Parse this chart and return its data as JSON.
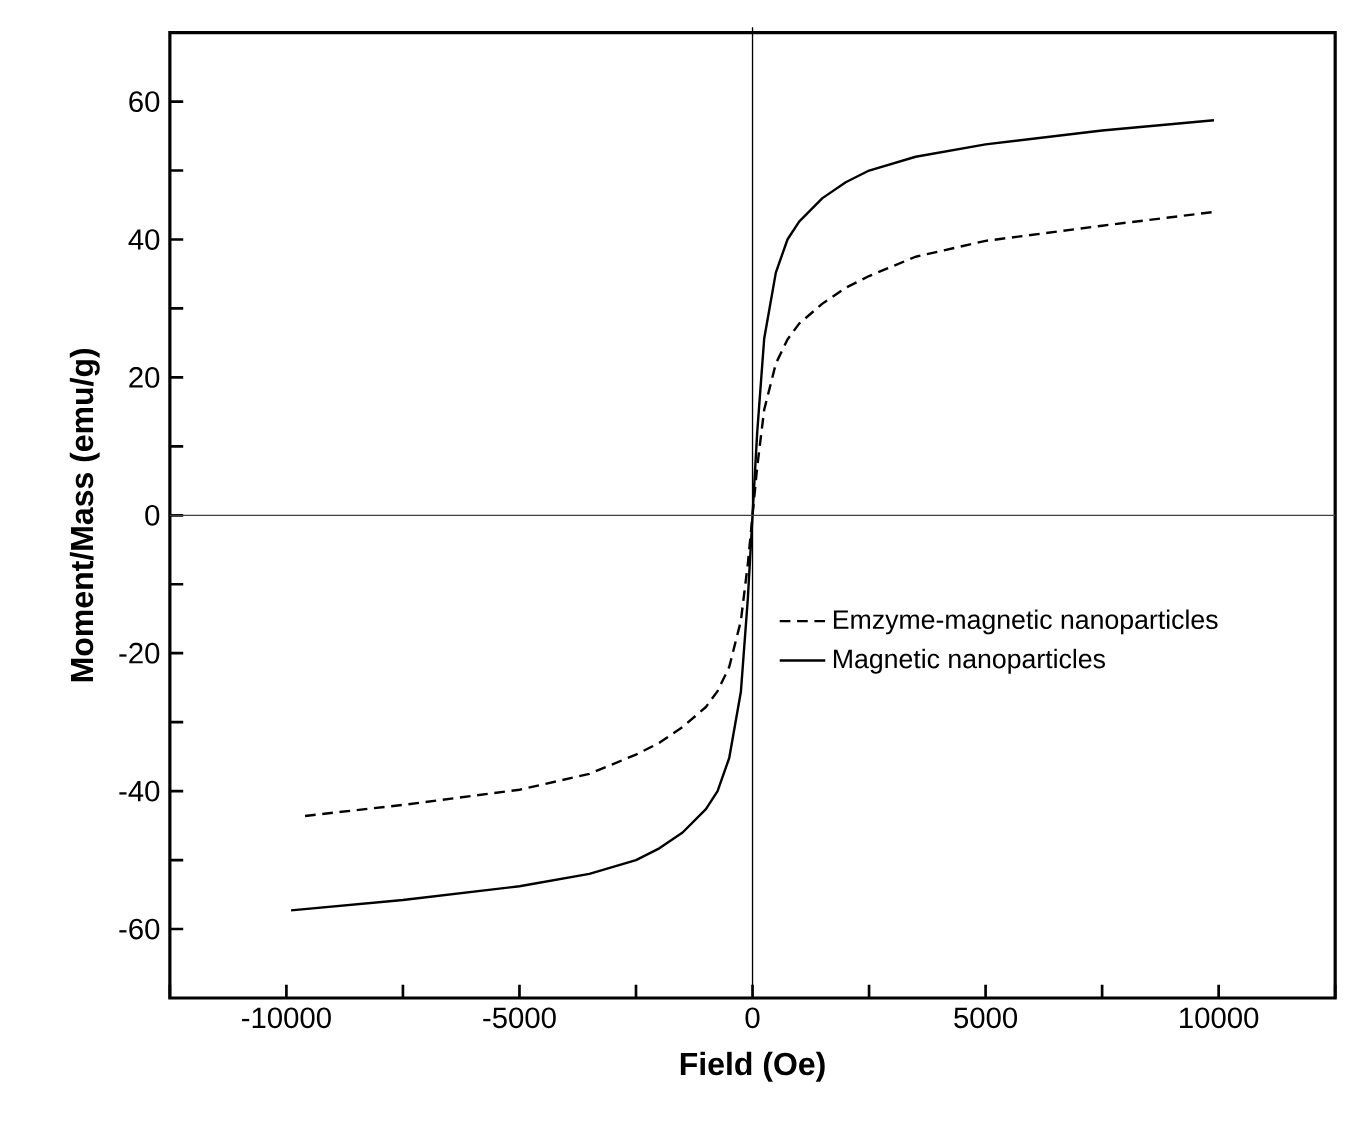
{
  "chart_data": {
    "type": "line",
    "xlabel": "Field (Oe)",
    "ylabel": "Moment/Mass (emu/g)",
    "xlim": [
      -12500,
      12500
    ],
    "ylim": [
      -70,
      70
    ],
    "xticks": [
      {
        "value": -12500,
        "label": null
      },
      -10000,
      {
        "value": -7500,
        "label": null
      },
      -5000,
      {
        "value": -2500,
        "label": null
      },
      0,
      {
        "value": 2500,
        "label": null
      },
      5000,
      {
        "value": 7500,
        "label": null
      },
      10000,
      {
        "value": 12500,
        "label": null
      }
    ],
    "yticks": [
      -60,
      {
        "value": -50,
        "label": null
      },
      -40,
      {
        "value": -30,
        "label": null
      },
      -20,
      {
        "value": -10,
        "label": null
      },
      0,
      {
        "value": 10,
        "label": null
      },
      20,
      {
        "value": 30,
        "label": null
      },
      40,
      {
        "value": 50,
        "label": null
      },
      60
    ],
    "legend": "right",
    "grid": false,
    "ref_lines": [
      {
        "axis": "x",
        "value": 0,
        "color": "#000000"
      },
      {
        "axis": "y",
        "value": 0,
        "color": "#404040"
      }
    ],
    "series": [
      {
        "name": "Emzyme-magnetic nanoparticles",
        "color": "#000000",
        "line_style": "dashed",
        "x": [
          -9600,
          -7500,
          -5000,
          -3500,
          -2500,
          -2000,
          -1500,
          -1000,
          -750,
          -500,
          -250,
          -100,
          0,
          100,
          250,
          500,
          750,
          1000,
          1500,
          2000,
          2500,
          3500,
          5000,
          7500,
          9900
        ],
        "values": [
          -43.6,
          -42,
          -39.8,
          -37.5,
          -34.7,
          -33,
          -30.7,
          -27.8,
          -25.5,
          -22,
          -15.3,
          -7,
          0,
          7,
          15.3,
          22,
          25.5,
          27.8,
          30.7,
          33,
          34.7,
          37.5,
          39.8,
          42,
          44
        ]
      },
      {
        "name": "Magnetic nanoparticles",
        "color": "#000000",
        "line_style": "solid",
        "x": [
          -9900,
          -7500,
          -5000,
          -3500,
          -2500,
          -2000,
          -1500,
          -1000,
          -750,
          -500,
          -250,
          -100,
          0,
          100,
          250,
          500,
          750,
          1000,
          1500,
          2000,
          2500,
          3500,
          5000,
          7500,
          9900
        ],
        "values": [
          -57.3,
          -55.8,
          -53.8,
          -52,
          -50,
          -48.3,
          -46,
          -42.6,
          -40,
          -35.2,
          -25.6,
          -12,
          0,
          12,
          25.6,
          35.2,
          40,
          42.6,
          46,
          48.3,
          50,
          52,
          53.8,
          55.8,
          57.3
        ]
      }
    ]
  }
}
